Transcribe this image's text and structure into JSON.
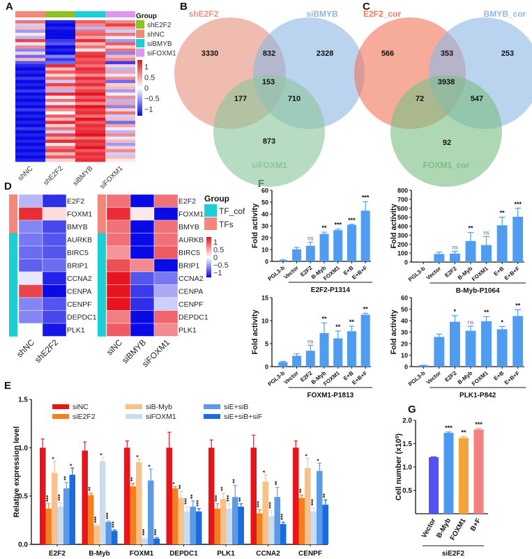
{
  "panels": {
    "A": "A",
    "B": "B",
    "C": "C",
    "D": "D",
    "E": "E",
    "F": "F",
    "G": "G"
  },
  "chart_data": [
    {
      "panel": "A",
      "type": "heatmap",
      "columns": [
        "shNC",
        "shE2F2",
        "siBMYB",
        "siFOXM1"
      ],
      "column_groups": [
        "shNC",
        "shE2F2",
        "siBMYB",
        "siFOXM1"
      ],
      "legend": {
        "title": "Group",
        "entries": [
          {
            "label": "shE2F2",
            "color": "#8dc21f"
          },
          {
            "label": "shNC",
            "color": "#f4877c"
          },
          {
            "label": "siBMYB",
            "color": "#1ccfd6"
          },
          {
            "label": "siFOXM1",
            "color": "#dc96f0"
          }
        ]
      },
      "color_scale": {
        "ticks": [
          "1",
          "0.5",
          "0",
          "−0.5",
          "−1"
        ],
        "low": "#0a0ae6",
        "mid": "#ffffff",
        "high": "#e6141e"
      },
      "matrix": [
        [
          0.6,
          -0.9,
          0.7,
          0.5
        ],
        [
          -0.2,
          -1,
          0.5,
          0.8
        ],
        [
          0.3,
          -0.9,
          -0.3,
          0.4
        ],
        [
          -0.4,
          -1,
          0.6,
          -0.2
        ],
        [
          0.1,
          -1,
          0.7,
          0.6
        ],
        [
          -0.3,
          -1,
          0.4,
          0.1
        ],
        [
          0.8,
          -0.8,
          0.9,
          -0.4
        ],
        [
          -0.1,
          -0.7,
          0.3,
          0.7
        ],
        [
          0.5,
          -1,
          0.6,
          0.2
        ],
        [
          -0.5,
          -0.9,
          0.1,
          0.6
        ],
        [
          0.2,
          -1,
          0.8,
          -0.5
        ],
        [
          -0.6,
          -0.5,
          0.9,
          0.3
        ],
        [
          0.3,
          -0.8,
          0.7,
          0.5
        ],
        [
          -0.7,
          -0.6,
          0.8,
          -0.8
        ],
        [
          -0.9,
          0.9,
          0.6,
          0.2
        ],
        [
          -1,
          0.3,
          0.9,
          -0.3
        ],
        [
          -0.9,
          0.7,
          0.8,
          0.4
        ],
        [
          -1,
          0.2,
          0.5,
          -0.1
        ],
        [
          -0.8,
          0.6,
          0.9,
          0.5
        ],
        [
          -1,
          -0.2,
          0.7,
          -0.6
        ],
        [
          -0.9,
          0.8,
          0.9,
          0.2
        ],
        [
          -1,
          0.4,
          0.6,
          0.3
        ],
        [
          -0.8,
          -0.3,
          0.8,
          -0.4
        ],
        [
          -1,
          0.9,
          1,
          0.1
        ],
        [
          -0.9,
          0.1,
          0.7,
          0.5
        ],
        [
          -1,
          0.6,
          0.9,
          -0.3
        ],
        [
          -0.9,
          -0.1,
          0.5,
          0.4
        ],
        [
          -1,
          0.8,
          1,
          -0.5
        ],
        [
          -0.8,
          0.5,
          0.8,
          0.2
        ],
        [
          -1,
          0,
          0.9,
          0.6
        ],
        [
          -0.9,
          0.7,
          0.6,
          -0.2
        ],
        [
          -1,
          0.3,
          1,
          0.3
        ],
        [
          -0.9,
          0.9,
          0.7,
          -0.6
        ],
        [
          -1,
          0.2,
          0.9,
          0.4
        ],
        [
          -0.8,
          0.6,
          0.8,
          0.1
        ],
        [
          -1,
          -0.2,
          0.9,
          -0.3
        ],
        [
          -0.9,
          0.8,
          1,
          0.5
        ],
        [
          -1,
          0.4,
          0.6,
          -0.1
        ],
        [
          -0.9,
          0.9,
          0.9,
          0.3
        ],
        [
          -1,
          0.1,
          0.8,
          -0.4
        ],
        [
          -0.9,
          0.6,
          1,
          0.2
        ],
        [
          -1,
          0.8,
          0.7,
          0.5
        ],
        [
          -0.9,
          0.3,
          0.9,
          -0.2
        ],
        [
          -1,
          0.7,
          0.8,
          0.3
        ],
        [
          -0.9,
          0.2,
          0.9,
          0.1
        ]
      ]
    },
    {
      "panel": "B",
      "type": "venn",
      "sets": [
        {
          "label": "shE2F2",
          "color": "#e9937f"
        },
        {
          "label": "siBMYB",
          "color": "#8fb8e3"
        },
        {
          "label": "siFOXM1",
          "color": "#8cc79b"
        }
      ],
      "regions": {
        "only_1": "3330",
        "1_2": "832",
        "only_2": "2328",
        "all": "153",
        "1_3": "177",
        "2_3": "710",
        "only_3": "873"
      }
    },
    {
      "panel": "C",
      "type": "venn",
      "sets": [
        {
          "label": "E2F2_cor",
          "color": "#f0785e"
        },
        {
          "label": "BMYB_cor",
          "color": "#8fb8e3"
        },
        {
          "label": "FOXM1_cor",
          "color": "#7cbf85"
        }
      ],
      "regions": {
        "only_1": "566",
        "1_2": "353",
        "only_2": "253",
        "all": "3938",
        "1_3": "72",
        "2_3": "547",
        "only_3": "92"
      }
    },
    {
      "panel": "D",
      "type": "heatmap",
      "rows": [
        "E2F2",
        "FOXM1",
        "BMYB",
        "AURKB",
        "BIRC5",
        "BRIP1",
        "CCNA2",
        "CENPA",
        "CENPF",
        "DEPDC1",
        "PLK1"
      ],
      "row_groups": [
        "TFs",
        "TFs",
        "TFs",
        "TF_cof",
        "TF_cof",
        "TF_cof",
        "TF_cof",
        "TF_cof",
        "TF_cof",
        "TF_cof",
        "TF_cof"
      ],
      "legend": {
        "title": "Group",
        "entries": [
          {
            "label": "TF_cof",
            "color": "#1ccfd6"
          },
          {
            "label": "TFs",
            "color": "#f4877c"
          }
        ]
      },
      "color_scale": {
        "ticks": [
          "1",
          "0.5",
          "0",
          "−0.5",
          "−1"
        ]
      },
      "left": {
        "columns": [
          "shNC",
          "shE2F2"
        ],
        "matrix": [
          [
            -0.3,
            -0.85
          ],
          [
            0.9,
            0.15
          ],
          [
            -0.5,
            -0.75
          ],
          [
            -0.55,
            -0.7
          ],
          [
            -0.6,
            -0.7
          ],
          [
            -0.65,
            -0.6
          ],
          [
            -0.1,
            -0.9
          ],
          [
            0.8,
            -1
          ],
          [
            -0.5,
            -0.7
          ],
          [
            -0.5,
            -0.75
          ],
          [
            0,
            -0.95
          ]
        ]
      },
      "right": {
        "columns": [
          "siNC",
          "siBMYB",
          "siFOXM1"
        ],
        "matrix": [
          [
            0.6,
            -1,
            0.6
          ],
          [
            0.9,
            0.1,
            -1
          ],
          [
            0.6,
            -1,
            0.6
          ],
          [
            0.6,
            -1,
            0.6
          ],
          [
            0.45,
            -1,
            0.7
          ],
          [
            0.75,
            0.5,
            -1
          ],
          [
            1,
            -0.7,
            -0.55
          ],
          [
            1,
            -0.8,
            -0.35
          ],
          [
            1,
            -0.85,
            -0.2
          ],
          [
            0.55,
            -1,
            0.65
          ],
          [
            0.7,
            -1,
            0.5
          ]
        ]
      }
    },
    {
      "panel": "E",
      "type": "bar",
      "ylabel": "Relative expression level",
      "ylim": [
        0,
        1.5
      ],
      "yticks": [
        "0.0",
        "0.5",
        "1.0",
        "1.5"
      ],
      "categories": [
        "E2F2",
        "B-Myb",
        "FOXM1",
        "DEPDC1",
        "PLK1",
        "CCNA2",
        "CENPF"
      ],
      "series": [
        {
          "name": "siNC",
          "color": "#e8141c",
          "values": [
            1,
            0.97,
            1,
            1,
            1,
            1,
            1
          ],
          "errors": [
            0.09,
            0.09,
            0.07,
            0.16,
            0.08,
            0.13,
            0.07
          ],
          "significance": [
            "",
            "",
            "",
            "",
            "",
            "",
            ""
          ]
        },
        {
          "name": "siE2F2",
          "color": "#f47f1c",
          "values": [
            0.37,
            0.51,
            0.6,
            0.58,
            0.37,
            0.32,
            0.48
          ],
          "errors": [
            0.05,
            0.02,
            0.03,
            0.02,
            0.05,
            0.04,
            0.03
          ],
          "significance": [
            "***",
            "**",
            "**",
            "*",
            "***",
            "***",
            "**"
          ]
        },
        {
          "name": "siB-Myb",
          "color": "#f9c08a",
          "values": [
            0.74,
            0.19,
            0.85,
            0.48,
            0.47,
            0.65,
            0.79
          ],
          "errors": [
            0.12,
            0.01,
            0.03,
            0.07,
            0.06,
            0.07,
            0.1
          ],
          "significance": [
            "*",
            "***",
            "*",
            "**",
            "**",
            "*",
            "*"
          ]
        },
        {
          "name": "siFOXM1",
          "color": "#c9dcf2",
          "values": [
            0.39,
            0.86,
            0.06,
            0.34,
            0.37,
            0.29,
            0.34
          ],
          "errors": [
            0.04,
            0.04,
            0.01,
            0.05,
            0.05,
            0.06,
            0.04
          ],
          "significance": [
            "***",
            "*",
            "***",
            "***",
            "***",
            "***",
            "***"
          ]
        },
        {
          "name": "siE+siB",
          "color": "#5c9ae6",
          "values": [
            0.58,
            0.23,
            0.66,
            0.39,
            0.49,
            0.49,
            0.76
          ],
          "errors": [
            0.06,
            0.01,
            0.12,
            0.06,
            0.12,
            0.1,
            0.08
          ],
          "significance": [
            "**",
            "***",
            "*",
            "**",
            "**",
            "**",
            "*"
          ]
        },
        {
          "name": "siE+siB+siF",
          "color": "#1a6be0",
          "values": [
            0.72,
            0.14,
            0.06,
            0.34,
            0.39,
            0.21,
            0.41
          ],
          "errors": [
            0.07,
            0.01,
            0.01,
            0.03,
            0.03,
            0.02,
            0.05
          ],
          "significance": [
            "*",
            "***",
            "***",
            "***",
            "**",
            "***",
            "**"
          ]
        }
      ]
    },
    {
      "panel": "F",
      "type": "bar",
      "subplots": [
        {
          "title": "E2F2-P1314",
          "ylabel": "Fold activity",
          "ylim": [
            0,
            60
          ],
          "yticks": [
            "0",
            "10",
            "20",
            "30",
            "40",
            "50",
            "60"
          ],
          "categories": [
            "PGL3-b",
            "Vector",
            "E2F2",
            "B-Myb",
            "FOXM1",
            "E+B",
            "E+B+F"
          ],
          "values": [
            1,
            10.2,
            13.2,
            23.2,
            26.3,
            30.8,
            42.8
          ],
          "errors": [
            0.3,
            1.5,
            3,
            1.5,
            1,
            0.5,
            7.5
          ],
          "significance": [
            "",
            "",
            "ns",
            "**",
            "***",
            "***",
            "***"
          ],
          "color": "#4f9cf0"
        },
        {
          "title": "B-Myb-P1064",
          "ylabel": "Fold activity",
          "ylim": [
            0,
            800
          ],
          "yticks": [
            "0",
            "100",
            "200",
            "300",
            "400",
            "500",
            "600",
            "700",
            "800"
          ],
          "categories": [
            "PGL3-b",
            "Vector",
            "E2F2",
            "B-Myb",
            "FOXM1",
            "E+B",
            "E+B+F"
          ],
          "values": [
            1,
            90,
            95,
            235,
            190,
            410,
            505
          ],
          "errors": [
            0,
            20,
            25,
            95,
            95,
            90,
            95
          ],
          "significance": [
            "",
            "",
            "ns",
            "**",
            "ns",
            "**",
            "***"
          ],
          "color": "#4f9cf0"
        },
        {
          "title": "FOXM1-P1813",
          "ylabel": "Fold activity",
          "ylim": [
            0,
            15
          ],
          "yticks": [
            "0",
            "5",
            "10",
            "15"
          ],
          "categories": [
            "PGL3-b",
            "Vector",
            "E2F2",
            "B-Myb",
            "FOXM1",
            "E+B",
            "E+B+F"
          ],
          "values": [
            1,
            2.35,
            3.45,
            7.3,
            6.15,
            7.7,
            11.3
          ],
          "errors": [
            0.15,
            0.45,
            1.2,
            2.2,
            1.6,
            1.1,
            0.3
          ],
          "significance": [
            "",
            "",
            "ns",
            "**",
            "**",
            "**",
            "**"
          ],
          "color": "#4f9cf0"
        },
        {
          "title": "PLK1-P842",
          "ylabel": "Fold activity",
          "ylim": [
            0,
            60
          ],
          "yticks": [
            "0",
            "10",
            "20",
            "30",
            "40",
            "50",
            "60"
          ],
          "categories": [
            "PGL3-b",
            "Vector",
            "E2F2",
            "B-Myb",
            "FOXM1",
            "E+B",
            "E+B+F"
          ],
          "values": [
            1,
            25.8,
            39,
            31.2,
            39.5,
            32.5,
            44
          ],
          "errors": [
            0.2,
            2.5,
            5.3,
            4,
            4,
            2.5,
            5.5
          ],
          "significance": [
            "",
            "",
            "*",
            "ns",
            "**",
            "*",
            "**"
          ],
          "color": "#4f9cf0"
        }
      ]
    },
    {
      "panel": "G",
      "type": "bar",
      "ylabel": "Cell number (x10",
      "ylabel_sup": "5",
      "ylabel_end": ")",
      "ylim": [
        0,
        2.0
      ],
      "yticks": [
        "0.5",
        "1.0",
        "1.5",
        "2.0"
      ],
      "categories": [
        "Vector",
        "B-Myb",
        "FOXM1",
        "B+F"
      ],
      "group_label": "siE2F2",
      "values": [
        1.21,
        1.73,
        1.62,
        1.8
      ],
      "errors": [
        0.01,
        0.02,
        0.03,
        0.02
      ],
      "colors": [
        "#5550f0",
        "#4a9af0",
        "#f5a23a",
        "#f58080"
      ],
      "significance": [
        "",
        "***",
        "**",
        "***"
      ]
    }
  ]
}
